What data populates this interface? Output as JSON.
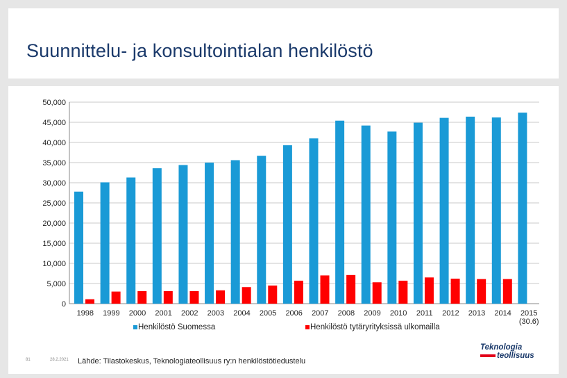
{
  "slide": {
    "title": "Suunnittelu- ja konsultointialan henkilöstö",
    "source": "Lähde: Tilastokeskus, Teknologiateollisuus ry:n henkilöstötiedustelu",
    "page_number": "81",
    "date": "28.2.2021",
    "logo": {
      "line1": "Teknologia",
      "line2": "teollisuus"
    }
  },
  "chart_data": {
    "type": "bar",
    "title": "",
    "xlabel": "",
    "ylabel": "",
    "ylim": [
      0,
      50000
    ],
    "yticks": [
      0,
      5000,
      10000,
      15000,
      20000,
      25000,
      30000,
      35000,
      40000,
      45000,
      50000
    ],
    "ytick_labels": [
      "0",
      "5,000",
      "10,000",
      "15,000",
      "20,000",
      "25,000",
      "30,000",
      "35,000",
      "40,000",
      "45,000",
      "50,000"
    ],
    "grid": true,
    "legend_position": "bottom",
    "categories": [
      "1998",
      "1999",
      "2000",
      "2001",
      "2002",
      "2003",
      "2004",
      "2005",
      "2006",
      "2007",
      "2008",
      "2009",
      "2010",
      "2011",
      "2012",
      "2013",
      "2014",
      "2015"
    ],
    "category_sublabels": {
      "2015": "(30.6)"
    },
    "series": [
      {
        "name": "Henkilöstö Suomessa",
        "color": "#1a9ad6",
        "values": [
          27800,
          30100,
          31300,
          33600,
          34400,
          35000,
          35600,
          36700,
          39300,
          41000,
          45400,
          44200,
          42700,
          44900,
          46100,
          46400,
          46200,
          47400
        ]
      },
      {
        "name": "Henkilöstö tytäryrityksissä ulkomailla",
        "color": "#ff0000",
        "values": [
          1100,
          3000,
          3100,
          3100,
          3100,
          3300,
          4100,
          4500,
          5700,
          7000,
          7100,
          5300,
          5700,
          6500,
          6200,
          6100,
          6100,
          0
        ]
      }
    ]
  }
}
